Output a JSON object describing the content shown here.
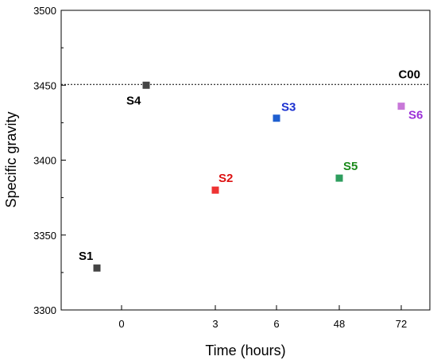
{
  "chart_data": {
    "type": "scatter",
    "title": "",
    "xlabel": "Time (hours)",
    "ylabel": "Specific gravity",
    "x_tick_labels": [
      "0",
      "3",
      "6",
      "48",
      "72"
    ],
    "y_ticks": [
      3300,
      3350,
      3400,
      3450,
      3500
    ],
    "ylim": [
      3300,
      3500
    ],
    "grid": false,
    "reference_line": {
      "label": "C00",
      "value": 3450,
      "style": "dotted",
      "color": "#000000"
    },
    "points": [
      {
        "name": "S1",
        "x": "-1",
        "y": 3328,
        "color": "#444444",
        "label_color": "#000000"
      },
      {
        "name": "S2",
        "x": "3",
        "y": 3380,
        "color": "#ee3333",
        "label_color": "#dd1111"
      },
      {
        "name": "S3",
        "x": "6",
        "y": 3428,
        "color": "#1f5fd0",
        "label_color": "#1a2fd0"
      },
      {
        "name": "S4",
        "x": "0.8",
        "y": 3450,
        "color": "#444444",
        "label_color": "#000000"
      },
      {
        "name": "S5",
        "x": "48",
        "y": 3388,
        "color": "#2e9e5e",
        "label_color": "#1a8a1a"
      },
      {
        "name": "S6",
        "x": "72",
        "y": 3436,
        "color": "#c878d8",
        "label_color": "#9b30d8"
      }
    ]
  }
}
